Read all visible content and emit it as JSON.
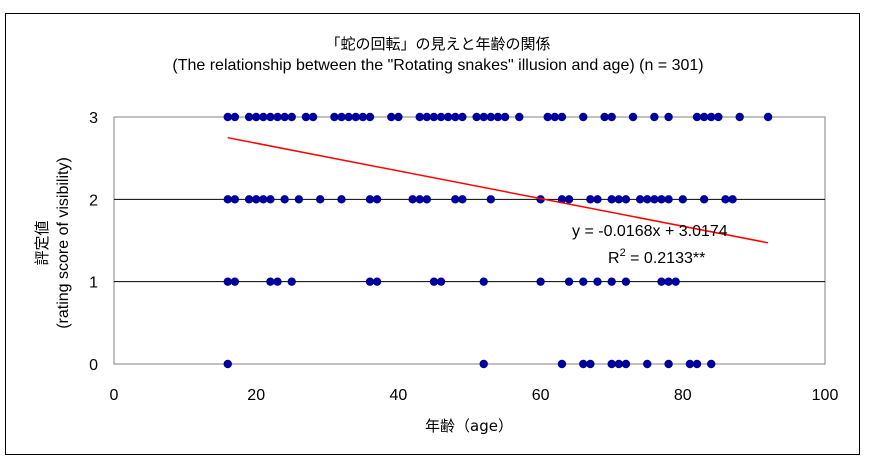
{
  "chart_data": {
    "type": "scatter",
    "title": "「蛇の回転」の見えと年齢の関係",
    "subtitle": "(The relationship between the \"Rotating snakes\" illusion and age) (n = 301)",
    "xlabel": "年齢（age）",
    "ylabel": "評定値\n(rating score of visibility)",
    "ylabel_line1": "評定値",
    "ylabel_line2": "(rating score of visibility)",
    "xlim": [
      0,
      100
    ],
    "ylim": [
      0,
      3
    ],
    "xticks": [
      "0",
      "20",
      "40",
      "60",
      "80",
      "100"
    ],
    "yticks": [
      "0",
      "1",
      "2",
      "3"
    ],
    "grid": "horizontal",
    "point_color": "#00009a",
    "trend_color": "#ff0000",
    "equation": "y = -0.0168x + 3.0174",
    "r2_label": "R",
    "r2_sup": "2",
    "r2_value": " = 0.2133**",
    "trendline": {
      "slope": -0.0168,
      "intercept": 3.0174,
      "x_range": [
        16,
        92
      ]
    },
    "points": [
      [
        16,
        3
      ],
      [
        17,
        3
      ],
      [
        19,
        3
      ],
      [
        20,
        3
      ],
      [
        21,
        3
      ],
      [
        22,
        3
      ],
      [
        23,
        3
      ],
      [
        24,
        3
      ],
      [
        25,
        3
      ],
      [
        27,
        3
      ],
      [
        28,
        3
      ],
      [
        31,
        3
      ],
      [
        32,
        3
      ],
      [
        33,
        3
      ],
      [
        34,
        3
      ],
      [
        35,
        3
      ],
      [
        36,
        3
      ],
      [
        39,
        3
      ],
      [
        40,
        3
      ],
      [
        43,
        3
      ],
      [
        44,
        3
      ],
      [
        45,
        3
      ],
      [
        46,
        3
      ],
      [
        47,
        3
      ],
      [
        48,
        3
      ],
      [
        49,
        3
      ],
      [
        51,
        3
      ],
      [
        52,
        3
      ],
      [
        53,
        3
      ],
      [
        54,
        3
      ],
      [
        55,
        3
      ],
      [
        57,
        3
      ],
      [
        61,
        3
      ],
      [
        62,
        3
      ],
      [
        63,
        3
      ],
      [
        66,
        3
      ],
      [
        69,
        3
      ],
      [
        70,
        3
      ],
      [
        73,
        3
      ],
      [
        76,
        3
      ],
      [
        78,
        3
      ],
      [
        82,
        3
      ],
      [
        83,
        3
      ],
      [
        84,
        3
      ],
      [
        85,
        3
      ],
      [
        88,
        3
      ],
      [
        92,
        3
      ],
      [
        16,
        2
      ],
      [
        17,
        2
      ],
      [
        19,
        2
      ],
      [
        20,
        2
      ],
      [
        21,
        2
      ],
      [
        22,
        2
      ],
      [
        24,
        2
      ],
      [
        26,
        2
      ],
      [
        29,
        2
      ],
      [
        32,
        2
      ],
      [
        36,
        2
      ],
      [
        37,
        2
      ],
      [
        42,
        2
      ],
      [
        43,
        2
      ],
      [
        44,
        2
      ],
      [
        48,
        2
      ],
      [
        49,
        2
      ],
      [
        53,
        2
      ],
      [
        60,
        2
      ],
      [
        63,
        2
      ],
      [
        64,
        2
      ],
      [
        67,
        2
      ],
      [
        68,
        2
      ],
      [
        70,
        2
      ],
      [
        71,
        2
      ],
      [
        72,
        2
      ],
      [
        74,
        2
      ],
      [
        75,
        2
      ],
      [
        76,
        2
      ],
      [
        77,
        2
      ],
      [
        78,
        2
      ],
      [
        80,
        2
      ],
      [
        83,
        2
      ],
      [
        86,
        2
      ],
      [
        87,
        2
      ],
      [
        16,
        1
      ],
      [
        17,
        1
      ],
      [
        22,
        1
      ],
      [
        23,
        1
      ],
      [
        25,
        1
      ],
      [
        36,
        1
      ],
      [
        37,
        1
      ],
      [
        45,
        1
      ],
      [
        46,
        1
      ],
      [
        52,
        1
      ],
      [
        60,
        1
      ],
      [
        64,
        1
      ],
      [
        66,
        1
      ],
      [
        68,
        1
      ],
      [
        70,
        1
      ],
      [
        72,
        1
      ],
      [
        77,
        1
      ],
      [
        78,
        1
      ],
      [
        79,
        1
      ],
      [
        16,
        0
      ],
      [
        52,
        0
      ],
      [
        63,
        0
      ],
      [
        66,
        0
      ],
      [
        67,
        0
      ],
      [
        70,
        0
      ],
      [
        71,
        0
      ],
      [
        72,
        0
      ],
      [
        75,
        0
      ],
      [
        78,
        0
      ],
      [
        81,
        0
      ],
      [
        82,
        0
      ],
      [
        84,
        0
      ]
    ]
  }
}
